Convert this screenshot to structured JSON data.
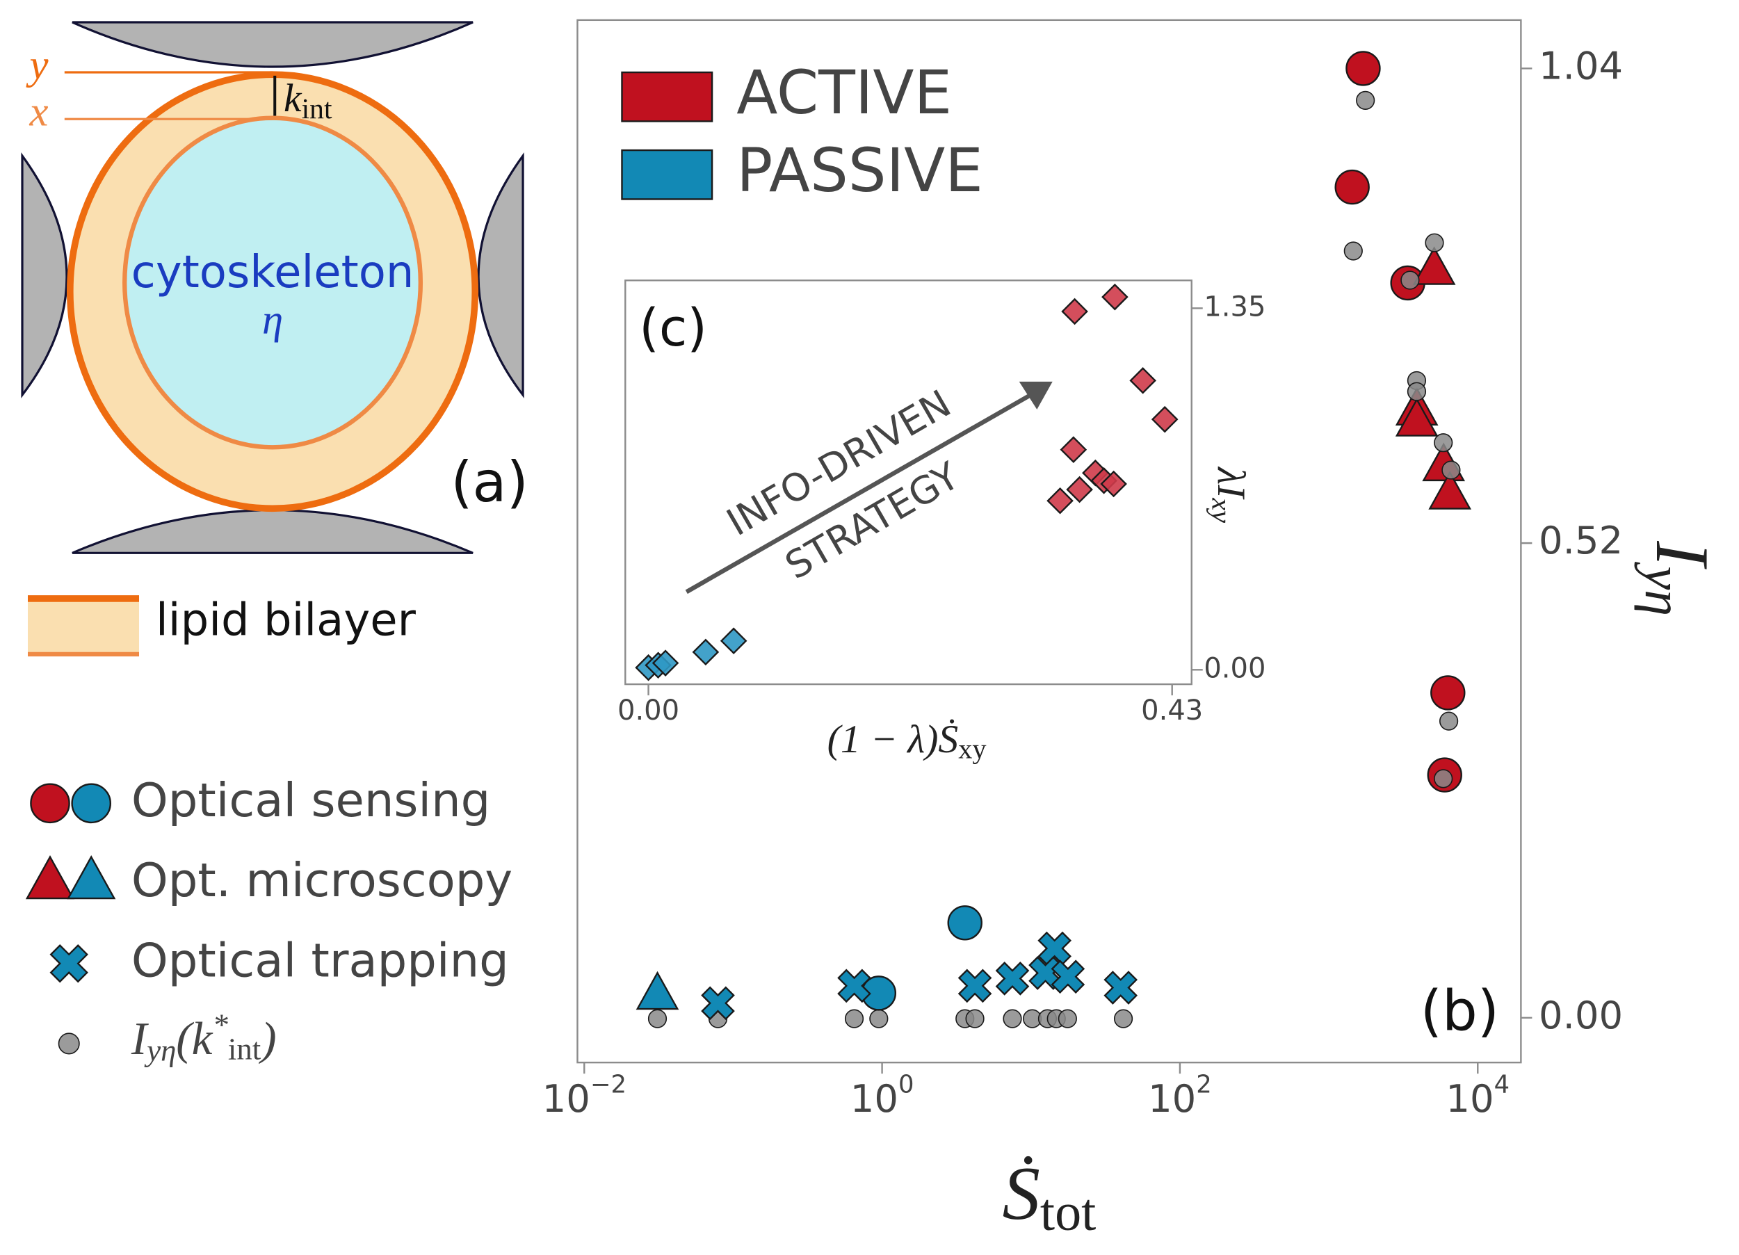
{
  "diagram": {
    "y_label": "y",
    "x_label": "x",
    "k_label": {
      "text": "k",
      "sub": "int"
    },
    "inner_label": "cytoskeleton",
    "inner_symbol": "η",
    "panel_label": "(a)",
    "bilayer_label": "lipid bilayer"
  },
  "chart_data": [
    {
      "type": "scatter",
      "xlog": true,
      "xlim": [
        0.009,
        19500
      ],
      "ylim": [
        -0.049,
        1.093
      ],
      "xticks": [
        {
          "value": 0.01,
          "label": "10",
          "exp": "−2"
        },
        {
          "value": 1,
          "label": "10",
          "exp": "0"
        },
        {
          "value": 100,
          "label": "10",
          "exp": "2"
        },
        {
          "value": 10000,
          "label": "10",
          "exp": "4"
        }
      ],
      "yticks": [
        {
          "value": 0,
          "label": "0.00"
        },
        0.52,
        1.04
      ],
      "xlabel": {
        "text": "Ṡ",
        "sub": "tot"
      },
      "ylabel": {
        "text": "I",
        "sub": "yη"
      },
      "panel_label": "(b)",
      "legend": {
        "colors": [
          {
            "label": "ACTIVE",
            "color": "#c0111f"
          },
          {
            "label": "PASSIVE",
            "color": "#1289b5"
          }
        ],
        "markers": [
          {
            "label": "Optical sensing",
            "marker": "circle",
            "colors": [
              "#c0111f",
              "#1289b5"
            ]
          },
          {
            "label": "Opt. microscopy",
            "marker": "triangle",
            "colors": [
              "#c0111f",
              "#1289b5"
            ]
          },
          {
            "label": "Optical trapping",
            "marker": "cross",
            "colors": [
              "#1289b5"
            ]
          },
          {
            "label": [
              "I",
              "yη",
              "(k",
              "*",
              "int",
              ")"
            ],
            "marker": "dot",
            "colors": [
              "#8a8a8a"
            ]
          }
        ]
      },
      "series": [
        {
          "marker": "circle",
          "color": "#c0111f",
          "x": [
            1700,
            1435,
            3390,
            6300,
            6000
          ],
          "y": [
            1.04,
            0.91,
            0.805,
            0.356,
            0.266
          ]
        },
        {
          "marker": "triangle",
          "color": "#c0111f",
          "x": [
            5100,
            3900,
            3900,
            5900,
            6500
          ],
          "y": [
            0.818,
            0.664,
            0.652,
            0.603,
            0.572
          ]
        },
        {
          "marker": "dot",
          "color": "#8a8a8a",
          "x": [
            0.031,
            0.079,
            0.65,
            0.95,
            3.6,
            4.2,
            7.5,
            10.2,
            12.9,
            14.8,
            17.6,
            41.7
          ],
          "y": [
            -0.001,
            -0.001,
            -0.001,
            -0.001,
            -0.001,
            -0.001,
            -0.001,
            -0.001,
            -0.001,
            -0.001,
            -0.001,
            -0.001
          ]
        },
        {
          "marker": "triangle",
          "color": "#1289b5",
          "x": [
            0.031
          ],
          "y": [
            0.024
          ]
        },
        {
          "marker": "circle",
          "color": "#1289b5",
          "x": [
            0.95,
            3.6
          ],
          "y": [
            0.027,
            0.104
          ]
        },
        {
          "marker": "cross",
          "color": "#1289b5",
          "x": [
            0.079,
            0.65,
            4.2,
            7.5,
            14.4,
            12.5,
            17.7,
            40
          ],
          "y": [
            0.016,
            0.035,
            0.035,
            0.043,
            0.076,
            0.049,
            0.045,
            0.033
          ]
        },
        {
          "marker": "dot",
          "color": "#8a8a8a",
          "x": [
            1760,
            1460,
            3510,
            5120,
            3890,
            3890,
            5870,
            6620,
            6390,
            5870
          ],
          "y": [
            1.005,
            0.84,
            0.808,
            0.849,
            0.698,
            0.686,
            0.63,
            0.6,
            0.325,
            0.262
          ]
        }
      ]
    },
    {
      "type": "scatter",
      "xlog": false,
      "xlim": [
        -0.019,
        0.446
      ],
      "ylim": [
        -0.054,
        1.454
      ],
      "xticks": [
        {
          "value": 0,
          "label": "0.00"
        },
        0.43
      ],
      "yticks": [
        {
          "value": 0,
          "label": "0.00"
        },
        1.35
      ],
      "xlabel": {
        "text": "(1 − λ)Ṡ",
        "sub": "xy"
      },
      "ylabel": {
        "text": "λI",
        "sub": "xy"
      },
      "panel_label": "(c)",
      "annotations": [
        "INFO-DRIVEN",
        "STRATEGY"
      ],
      "series": [
        {
          "marker": "diamond",
          "color": "#cf3b4a",
          "x": [
            0.35,
            0.383,
            0.406,
            0.424,
            0.349,
            0.338,
            0.354,
            0.367,
            0.374,
            0.382
          ],
          "y": [
            1.338,
            1.392,
            1.08,
            0.935,
            0.822,
            0.631,
            0.673,
            0.735,
            0.706,
            0.694
          ]
        },
        {
          "marker": "diamond",
          "color": "#2f98c4",
          "x": [
            0.0,
            0.008,
            0.014,
            0.047,
            0.07
          ],
          "y": [
            0.008,
            0.017,
            0.025,
            0.066,
            0.108
          ]
        }
      ]
    }
  ]
}
